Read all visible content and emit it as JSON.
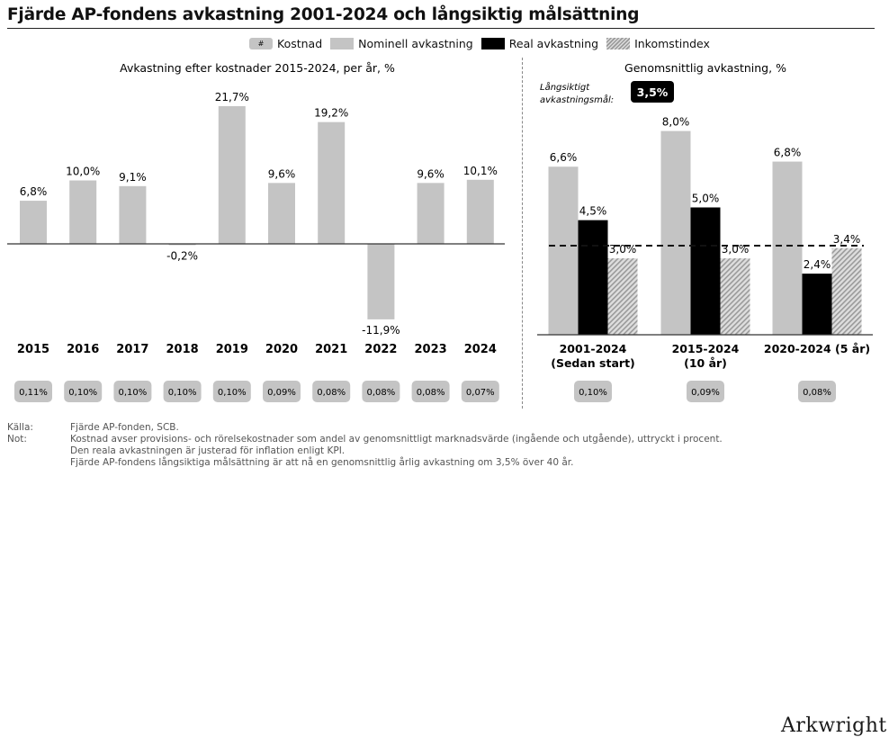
{
  "title": "Fjärde AP-fondens avkastning 2001-2024 och långsiktig målsättning",
  "legend": {
    "cost_symbol": "#",
    "cost": "Kostnad",
    "nominal": "Nominell avkastning",
    "real": "Real avkastning",
    "inflation": "Inkomstindex"
  },
  "chart_data": [
    {
      "type": "bar",
      "title": "Avkastning efter kostnader 2015-2024, per år, %",
      "categories": [
        "2015",
        "2016",
        "2017",
        "2018",
        "2019",
        "2020",
        "2021",
        "2022",
        "2023",
        "2024"
      ],
      "values": [
        6.8,
        10.0,
        9.1,
        -0.2,
        21.7,
        9.6,
        19.2,
        -11.9,
        9.6,
        10.1
      ],
      "value_labels": [
        "6,8%",
        "10,0%",
        "9,1%",
        "-0,2%",
        "21,7%",
        "9,6%",
        "19,2%",
        "-11,9%",
        "9,6%",
        "10,1%"
      ],
      "costs": [
        "0,11%",
        "0,10%",
        "0,10%",
        "0,10%",
        "0,10%",
        "0,09%",
        "0,08%",
        "0,08%",
        "0,08%",
        "0,07%"
      ],
      "color": "#c4c4c4",
      "ylim": [
        -12,
        22
      ]
    },
    {
      "type": "bar",
      "title": "Genomsnittlig avkastning, %",
      "categories": [
        "2001-2024\n(Sedan start)",
        "2015-2024\n(10 år)",
        "2020-2024 (5 år)"
      ],
      "series": [
        {
          "name": "Nominell avkastning",
          "values": [
            6.6,
            8.0,
            6.8
          ],
          "labels": [
            "6,6%",
            "8,0%",
            "6,8%"
          ],
          "color": "#c4c4c4"
        },
        {
          "name": "Real avkastning",
          "values": [
            4.5,
            5.0,
            2.4
          ],
          "labels": [
            "4,5%",
            "5,0%",
            "2,4%"
          ],
          "color": "#000000"
        },
        {
          "name": "Inkomstindex",
          "values": [
            3.0,
            3.0,
            3.4
          ],
          "labels": [
            "3,0%",
            "3,0%",
            "3,4%"
          ],
          "color": "hatched"
        }
      ],
      "costs": [
        "0,10%",
        "0,09%",
        "0,08%"
      ],
      "target": {
        "label_line1": "Långsiktigt",
        "label_line2": "avkastningsmål:",
        "value": 3.5,
        "value_label": "3,5%"
      },
      "ylim": [
        0,
        8.6
      ]
    }
  ],
  "notes": {
    "source_label": "Källa:",
    "source_text": "Fjärde AP-fonden, SCB.",
    "note_label": "Not:",
    "note_lines": [
      "Kostnad avser provisions- och rörelsekostnader som andel av genomsnittligt marknadsvärde (ingående och utgående), uttryckt i procent.",
      "Den reala avkastningen är justerad för inflation enligt KPI.",
      "Fjärde AP-fondens långsiktiga målsättning är att nå en genomsnittlig årlig avkastning om 3,5% över 40 år."
    ]
  },
  "brand": "Arkwright"
}
